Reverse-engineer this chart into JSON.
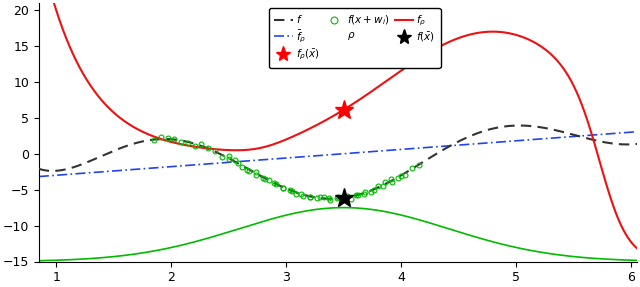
{
  "x_min": 0.85,
  "x_max": 6.05,
  "y_min": -15,
  "y_max": 21,
  "x_bar": 3.5,
  "x_ticks": [
    1,
    2,
    3,
    4,
    5,
    6
  ],
  "y_ticks": [
    -15,
    -10,
    -5,
    0,
    5,
    10,
    15,
    20
  ],
  "f_color": "#333333",
  "f_rho_color": "#ee1111",
  "f_bar_rho_color": "#2244ee",
  "f_rho_bottom_color": "#00bb00",
  "sample_color": "#00bb00",
  "star_red_color": "#ff0000",
  "star_black_color": "#000000",
  "bg_color": "#ffffff"
}
